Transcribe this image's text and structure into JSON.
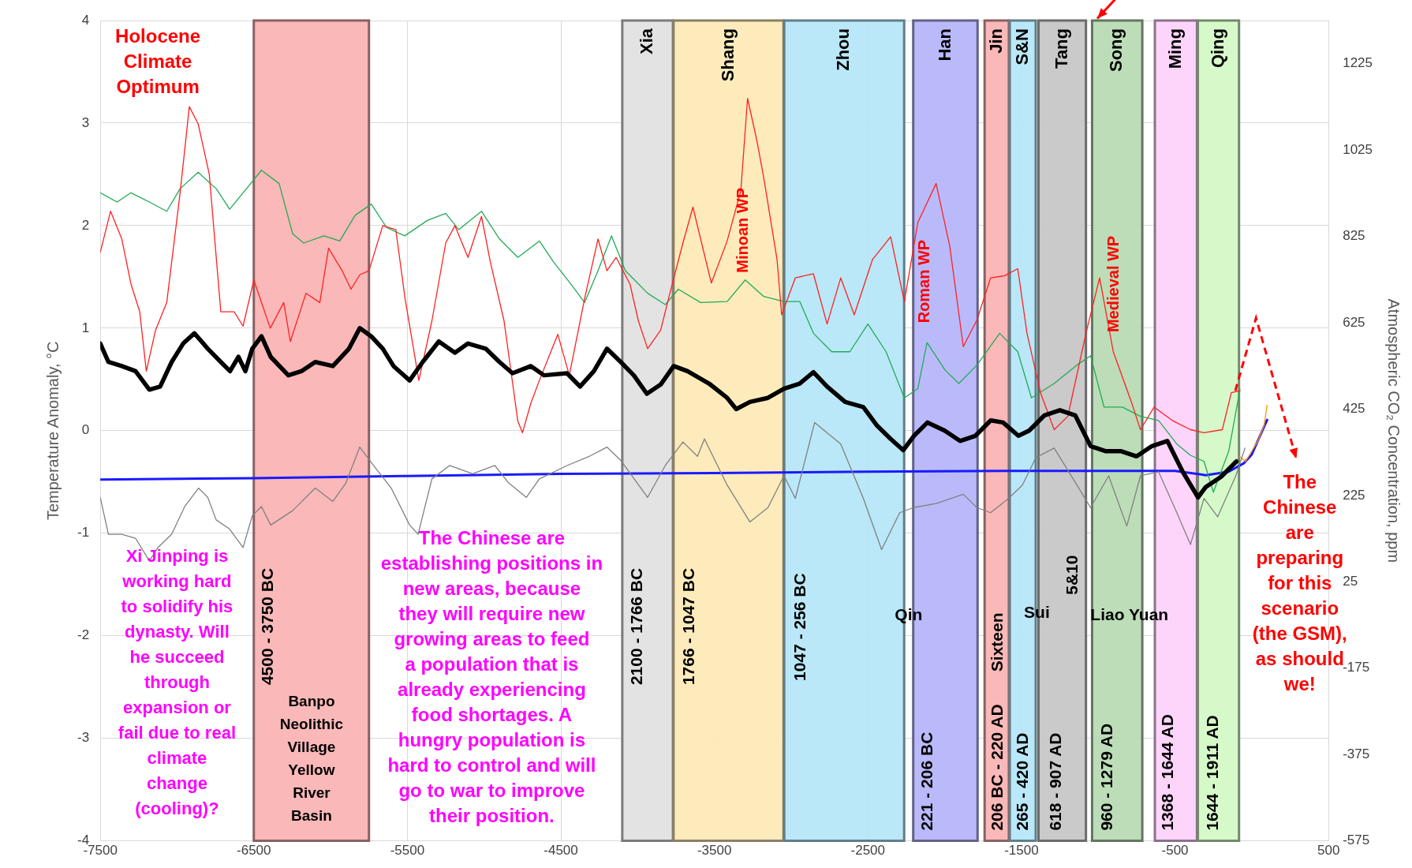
{
  "chart_data": {
    "type": "line",
    "ylabel": "Temperature Anomaly, °C",
    "y2label": "Atmospheric CO₂ Concentration, ppm",
    "xlim": [
      -7500,
      500
    ],
    "xticks": [
      -7500,
      -6500,
      -5500,
      -4500,
      -3500,
      -2500,
      -1500,
      -500,
      500
    ],
    "ylim": [
      -4,
      4
    ],
    "yticks": [
      -4,
      -3,
      -2,
      -1,
      0,
      1,
      2,
      3,
      4
    ],
    "y2lim": [
      -575,
      1325
    ],
    "y2ticks": [
      -575,
      -375,
      -175,
      25,
      225,
      425,
      625,
      825,
      1025,
      1225
    ],
    "grid": true,
    "legend": false,
    "marker": "none",
    "line_style": "solid",
    "series": [
      {
        "type": "line",
        "color": "#000000",
        "x": [
          -7500,
          -7447,
          -7360,
          -7270,
          -7180,
          -7110,
          -7035,
          -6960,
          -6887,
          -6800,
          -6715,
          -6655,
          -6600,
          -6555,
          -6510,
          -6450,
          -6390,
          -6275,
          -6190,
          -6100,
          -5985,
          -5880,
          -5810,
          -5735,
          -5660,
          -5590,
          -5485,
          -5400,
          -5295,
          -5190,
          -5105,
          -4990,
          -4900,
          -4815,
          -4695,
          -4610,
          -4460,
          -4375,
          -4285,
          -4200,
          -4110,
          -4025,
          -3940,
          -3850,
          -3765,
          -3675,
          -3535,
          -3417,
          -3358,
          -3269,
          -3151,
          -3047,
          -2944,
          -2855,
          -2766,
          -2648,
          -2530,
          -2441,
          -2352,
          -2270,
          -2200,
          -2112,
          -2000,
          -1900,
          -1800,
          -1700,
          -1620,
          -1520,
          -1450,
          -1350,
          -1250,
          -1150,
          -1050,
          -950,
          -850,
          -750,
          -650,
          -550,
          -450,
          -350,
          -300,
          -200,
          -100
        ],
        "values": [
          0.85,
          0.67,
          0.63,
          0.58,
          0.4,
          0.43,
          0.67,
          0.85,
          0.95,
          0.8,
          0.67,
          0.58,
          0.72,
          0.58,
          0.8,
          0.92,
          0.72,
          0.54,
          0.58,
          0.67,
          0.63,
          0.8,
          1.0,
          0.92,
          0.8,
          0.63,
          0.49,
          0.67,
          0.87,
          0.76,
          0.85,
          0.8,
          0.67,
          0.56,
          0.63,
          0.54,
          0.56,
          0.43,
          0.58,
          0.8,
          0.67,
          0.54,
          0.36,
          0.45,
          0.63,
          0.58,
          0.46,
          0.32,
          0.21,
          0.28,
          0.32,
          0.41,
          0.46,
          0.57,
          0.43,
          0.28,
          0.23,
          0.05,
          -0.08,
          -0.19,
          -0.05,
          0.08,
          0.0,
          -0.1,
          -0.05,
          0.1,
          0.08,
          -0.05,
          0.0,
          0.15,
          0.2,
          0.15,
          -0.15,
          -0.2,
          -0.2,
          -0.25,
          -0.15,
          -0.1,
          -0.4,
          -0.65,
          -0.55,
          -0.45,
          -0.3
        ]
      },
      {
        "type": "line",
        "color": "#ff2020",
        "x": [
          -7500,
          -7433,
          -7360,
          -7300,
          -7243,
          -7200,
          -7140,
          -7067,
          -6980,
          -6920,
          -6862,
          -6790,
          -6715,
          -6628,
          -6570,
          -6500,
          -6393,
          -6305,
          -6262,
          -6160,
          -6070,
          -6013,
          -5925,
          -5867,
          -5810,
          -5750,
          -5660,
          -5575,
          -5515,
          -5425,
          -5340,
          -5250,
          -5190,
          -5105,
          -5017,
          -4960,
          -4870,
          -4780,
          -4750,
          -4695,
          -4640,
          -4520,
          -4445,
          -4345,
          -4258,
          -4200,
          -4140,
          -4050,
          -3995,
          -3935,
          -3850,
          -3790,
          -3705,
          -3640,
          -3520,
          -3417,
          -3328,
          -3284,
          -3225,
          -3180,
          -3092,
          -3062,
          -2973,
          -2855,
          -2766,
          -2677,
          -2589,
          -2470,
          -2352,
          -2263,
          -2175,
          -2056,
          -1967,
          -1879,
          -1790,
          -1701,
          -1612,
          -1524,
          -1464,
          -1376,
          -1287,
          -1198,
          -1080,
          -991,
          -902,
          -784,
          -725,
          -636,
          -518,
          -399,
          -311,
          -192,
          -133,
          -77
        ],
        "values": [
          1.74,
          2.14,
          1.87,
          1.43,
          1.16,
          0.58,
          0.98,
          1.25,
          2.32,
          3.16,
          2.99,
          2.5,
          1.16,
          1.16,
          1.02,
          1.47,
          1.0,
          1.25,
          0.87,
          1.34,
          1.25,
          1.78,
          1.56,
          1.38,
          1.52,
          1.56,
          2.0,
          1.96,
          1.29,
          0.49,
          1.07,
          1.83,
          2.0,
          1.69,
          2.09,
          1.65,
          1.07,
          0.09,
          -0.02,
          0.27,
          0.49,
          0.94,
          0.54,
          1.29,
          1.87,
          1.56,
          1.69,
          1.43,
          1.07,
          0.8,
          0.98,
          1.34,
          1.83,
          2.18,
          1.44,
          1.85,
          2.34,
          3.24,
          2.84,
          2.48,
          1.67,
          1.13,
          1.49,
          1.53,
          1.04,
          1.49,
          1.13,
          1.67,
          1.89,
          1.26,
          2.03,
          2.41,
          1.8,
          0.82,
          1.08,
          1.49,
          1.51,
          1.58,
          0.95,
          0.37,
          0.01,
          0.14,
          0.95,
          1.49,
          0.77,
          0.28,
          0.01,
          0.23,
          0.1,
          0.01,
          -0.02,
          0.01,
          0.37,
          0.39
        ]
      },
      {
        "type": "line",
        "color": "#22aa55",
        "x": [
          -7500,
          -7390,
          -7300,
          -7180,
          -7067,
          -6980,
          -6862,
          -6745,
          -6657,
          -6570,
          -6450,
          -6335,
          -6247,
          -6175,
          -6043,
          -5940,
          -5840,
          -5735,
          -5634,
          -5517,
          -5370,
          -5250,
          -5165,
          -5017,
          -4900,
          -4780,
          -4640,
          -4550,
          -4435,
          -4345,
          -4258,
          -4170,
          -4080,
          -3935,
          -3820,
          -3735,
          -3590,
          -3417,
          -3299,
          -3180,
          -3047,
          -2944,
          -2855,
          -2736,
          -2618,
          -2500,
          -2382,
          -2263,
          -2175,
          -2115,
          -1997,
          -1908,
          -1790,
          -1642,
          -1524,
          -1435,
          -1287,
          -1139,
          -1050,
          -962,
          -843,
          -725,
          -607,
          -488,
          -399,
          -311,
          -250,
          -150,
          -77
        ],
        "values": [
          2.32,
          2.23,
          2.32,
          2.23,
          2.14,
          2.36,
          2.52,
          2.36,
          2.16,
          2.32,
          2.54,
          2.41,
          1.92,
          1.83,
          1.9,
          1.85,
          2.1,
          2.21,
          1.98,
          1.9,
          2.05,
          2.12,
          1.96,
          2.14,
          1.87,
          1.69,
          1.85,
          1.65,
          1.43,
          1.25,
          1.56,
          1.9,
          1.56,
          1.34,
          1.23,
          1.38,
          1.25,
          1.26,
          1.47,
          1.31,
          1.26,
          1.26,
          0.95,
          0.77,
          0.77,
          1.04,
          0.77,
          0.32,
          0.41,
          0.86,
          0.59,
          0.46,
          0.64,
          0.95,
          0.77,
          0.32,
          0.46,
          0.64,
          0.73,
          0.23,
          0.23,
          0.14,
          0.1,
          -0.13,
          -0.24,
          -0.3,
          -0.6,
          -0.2,
          0.4
        ]
      },
      {
        "type": "line",
        "color": "#808080",
        "x": [
          -7500,
          -7447,
          -7360,
          -7270,
          -7180,
          -7125,
          -7035,
          -6950,
          -6860,
          -6800,
          -6745,
          -6657,
          -6570,
          -6510,
          -6450,
          -6390,
          -6247,
          -6100,
          -5985,
          -5900,
          -5810,
          -5720,
          -5605,
          -5485,
          -5430,
          -5340,
          -5225,
          -5075,
          -4930,
          -4840,
          -4725,
          -4640,
          -4460,
          -4315,
          -4200,
          -4110,
          -3935,
          -3820,
          -3705,
          -3610,
          -3565,
          -3417,
          -3269,
          -3151,
          -3047,
          -2973,
          -2847,
          -2677,
          -2530,
          -2411,
          -2293,
          -2204,
          -2056,
          -1879,
          -1790,
          -1701,
          -1583,
          -1494,
          -1405,
          -1287,
          -1139,
          -1050,
          -932,
          -814,
          -725,
          -607,
          -488,
          -399,
          -311,
          -222,
          -104,
          -44
        ],
        "values": [
          -0.65,
          -1.01,
          -1.01,
          -1.05,
          -1.27,
          -1.14,
          -1.01,
          -0.74,
          -0.56,
          -0.65,
          -0.87,
          -0.96,
          -1.14,
          -0.83,
          -0.74,
          -0.92,
          -0.78,
          -0.56,
          -0.69,
          -0.51,
          -0.16,
          -0.34,
          -0.56,
          -0.92,
          -1.01,
          -0.47,
          -0.34,
          -0.42,
          -0.34,
          -0.51,
          -0.65,
          -0.47,
          -0.34,
          -0.25,
          -0.16,
          -0.29,
          -0.65,
          -0.34,
          -0.11,
          -0.25,
          -0.08,
          -0.53,
          -0.89,
          -0.75,
          -0.44,
          -0.66,
          0.08,
          -0.13,
          -0.66,
          -1.16,
          -0.8,
          -0.75,
          -0.71,
          -0.62,
          -0.75,
          -0.8,
          -0.66,
          -0.53,
          -0.26,
          -0.17,
          -0.53,
          -0.75,
          -0.44,
          -0.93,
          -0.44,
          -0.4,
          -0.8,
          -1.11,
          -0.66,
          -0.84,
          -0.44,
          -0.17
        ]
      },
      {
        "type": "line",
        "color": "#ff9900",
        "x": [
          -80,
          -40,
          0,
          40,
          80,
          100
        ],
        "values": [
          -0.25,
          -0.3,
          -0.2,
          -0.1,
          0.05,
          0.25
        ]
      },
      {
        "type": "line",
        "color": "#1a1aff",
        "axis": "y2",
        "x": [
          -7500,
          -6500,
          -5500,
          -4500,
          -3500,
          -2500,
          -1500,
          -500,
          -300,
          -150,
          -50,
          0,
          50,
          100
        ],
        "values": [
          262,
          265,
          270,
          275,
          277,
          280,
          282,
          282,
          272,
          280,
          300,
          320,
          360,
          400
        ]
      }
    ],
    "bands": [
      {
        "axis": "x",
        "from": -6500,
        "to": -5750,
        "color": "#f9b0b0"
      },
      {
        "axis": "x",
        "from": -4100,
        "to": -3770,
        "label": "Xia",
        "color": "#e0e0e0"
      },
      {
        "axis": "x",
        "from": -3766,
        "to": -3050,
        "label": "Shang",
        "color": "#fde9b5"
      },
      {
        "axis": "x",
        "from": -3045,
        "to": -2264,
        "label": "Zhou",
        "color": "#b3e5f7"
      },
      {
        "axis": "x",
        "from": -2205,
        "to": -1786,
        "label": "Han",
        "color": "#b3b3f9"
      },
      {
        "axis": "x",
        "from": -1740,
        "to": -1582,
        "label": "Jin",
        "color": "#f9b0b0"
      },
      {
        "axis": "x",
        "from": -1576,
        "to": -1407,
        "label": "S&N",
        "color": "#b3e5f7"
      },
      {
        "axis": "x",
        "from": -1389,
        "to": -1080,
        "label": "Tang",
        "color": "#c4c4c4"
      },
      {
        "axis": "x",
        "from": -1040,
        "to": -713,
        "label": "Song",
        "color": "#b5d9b0"
      },
      {
        "axis": "x",
        "from": -631,
        "to": -357,
        "label": "Ming",
        "color": "#fdd0fa"
      },
      {
        "axis": "x",
        "from": -351,
        "to": -83,
        "label": "Qing",
        "color": "#d2f8c4"
      }
    ],
    "annotations": [
      "Holocene\nClimate\nOptimum",
      "Xi Jinping is\nworking hard\nto solidify his\ndynasty. Will\nhe succeed\nthrough\nexpansion or\nfail due to real\nclimate\nchange\n(cooling)?",
      "The Chinese are\nestablishing positions in\nnew areas, because\nthey will require new\ngrowing areas to feed\na population that is\nalready experiencing\nfood shortages. A\nhungry population is\nhard to control and will\ngo to war to improve\ntheir position.",
      "The\nChinese\nare\npreparing\nfor this\nscenario\n(the GSM),\nas should\nwe!",
      "Banpo\nNeolithic\nVillage\nYellow\nRiver\nBasin",
      "Qin",
      "Sui",
      "Liao",
      "Yuan",
      "4500 - 3750 BC",
      "2100 - 1766 BC",
      "1766 - 1047 BC",
      "1047 - 256 BC",
      "221 - 206 BC",
      "206 BC - 220 AD",
      "265 - 420 AD",
      "618 - 907 AD",
      "960 - 1279 AD",
      "1368 - 1644 AD",
      "1644 - 1911 AD",
      "Sixteen",
      "5&10",
      "Minoan WP",
      "Roman WP",
      "Medieval WP"
    ]
  }
}
